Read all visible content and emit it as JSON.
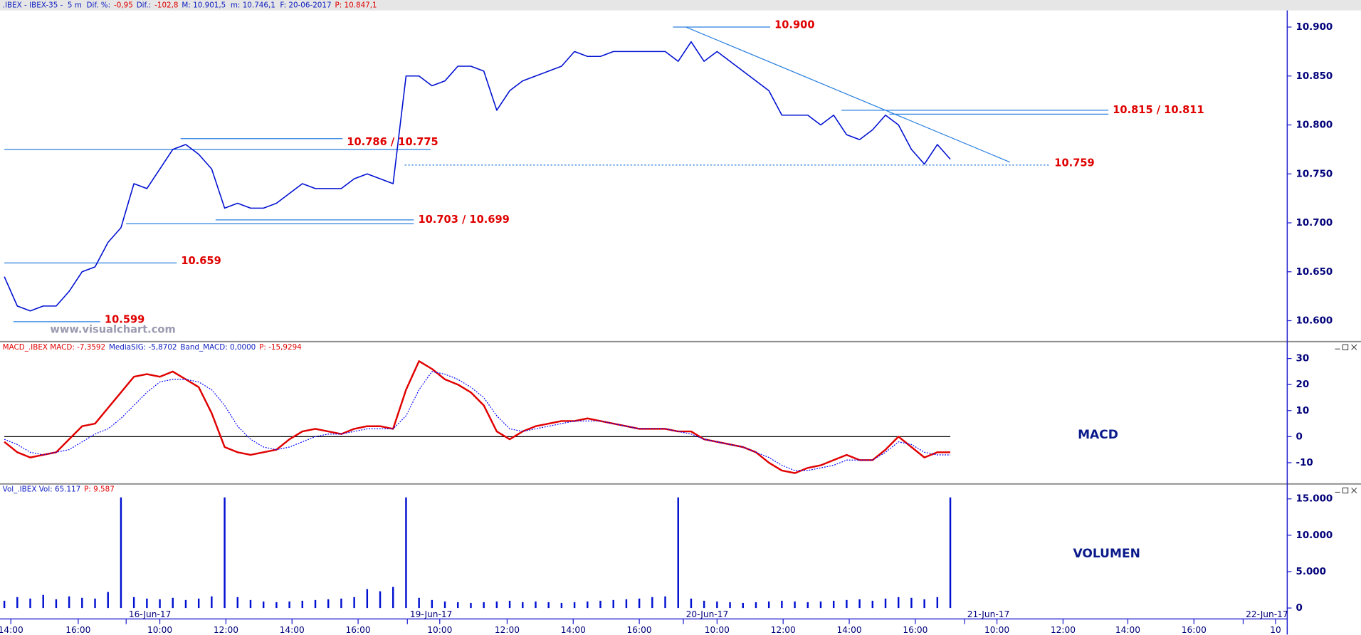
{
  "chart_data": [
    {
      "type": "line",
      "header": [
        {
          "text": ".IBEX - IBEX-35 -  5 m  Dif. %:",
          "color": "#1020c0"
        },
        {
          "text": "-0,95",
          "color": "#e00000"
        },
        {
          "text": "Dif.:",
          "color": "#1020c0"
        },
        {
          "text": "-102,8",
          "color": "#e00000"
        },
        {
          "text": "M: 10.901,5  m: 10.746,1  F: 20-06-2017",
          "color": "#1020c0"
        },
        {
          "text": "P: 10.847,1",
          "color": "#e00000"
        }
      ],
      "watermark": "www.visualchart.com",
      "color": "#0010d0",
      "x": [
        0,
        1,
        2,
        3,
        4,
        5,
        6,
        7,
        8,
        9,
        10,
        11,
        12,
        13,
        14,
        15,
        16,
        17,
        18,
        19,
        20,
        21,
        22,
        23,
        24,
        25,
        26,
        27,
        28,
        29,
        30,
        31,
        32,
        33,
        34,
        35,
        36,
        37,
        38,
        39,
        40,
        41,
        42,
        43,
        44,
        45,
        46,
        47,
        48,
        49,
        50,
        51,
        52,
        53,
        54,
        55,
        56,
        57,
        58,
        59,
        60,
        61,
        62,
        63,
        64,
        65,
        66,
        67,
        68,
        69,
        70,
        71,
        72,
        73
      ],
      "values": [
        10.645,
        10.615,
        10.61,
        10.615,
        10.615,
        10.63,
        10.65,
        10.655,
        10.68,
        10.695,
        10.74,
        10.735,
        10.755,
        10.775,
        10.78,
        10.77,
        10.755,
        10.715,
        10.72,
        10.715,
        10.715,
        10.72,
        10.73,
        10.74,
        10.735,
        10.735,
        10.735,
        10.745,
        10.75,
        10.745,
        10.74,
        10.85,
        10.85,
        10.84,
        10.845,
        10.86,
        10.86,
        10.855,
        10.815,
        10.835,
        10.845,
        10.85,
        10.855,
        10.86,
        10.875,
        10.87,
        10.87,
        10.875,
        10.875,
        10.875,
        10.875,
        10.875,
        10.865,
        10.885,
        10.865,
        10.875,
        10.865,
        10.855,
        10.845,
        10.835,
        10.81,
        10.81,
        10.81,
        10.8,
        10.81,
        10.79,
        10.785,
        10.795,
        10.81,
        10.8,
        10.775,
        10.76,
        10.78,
        10.765
      ],
      "xlim": [
        0,
        99
      ],
      "ylim": [
        10.58,
        10.917
      ],
      "yticks": [
        {
          "value": 10.6,
          "label": "10.600"
        },
        {
          "value": 10.65,
          "label": "10.650"
        },
        {
          "value": 10.7,
          "label": "10.700"
        },
        {
          "value": 10.75,
          "label": "10.750"
        },
        {
          "value": 10.8,
          "label": "10.800"
        },
        {
          "value": 10.85,
          "label": "10.850"
        },
        {
          "value": 10.9,
          "label": "10.900"
        }
      ],
      "level_color": "#2a7fe0",
      "levels": [
        {
          "label": "10.599",
          "values": [
            10.599
          ],
          "ranges": [
            [
              0.7,
              7.4
            ]
          ]
        },
        {
          "label": "10.659",
          "values": [
            10.659
          ],
          "ranges": [
            [
              0,
              13.3
            ]
          ]
        },
        {
          "label": "10.703 / 10.699",
          "values": [
            10.703,
            10.699
          ],
          "ranges": [
            [
              16.3,
              31.6
            ],
            [
              9.4,
              31.6
            ]
          ]
        },
        {
          "label": "10.786 / 10.775",
          "values": [
            10.786,
            10.775
          ],
          "ranges": [
            [
              13.6,
              26.1
            ],
            [
              0,
              32.9
            ]
          ]
        },
        {
          "label": "10.900",
          "values": [
            10.9
          ],
          "ranges": [
            [
              51.6,
              59.1
            ]
          ]
        },
        {
          "label": "10.815 / 10.811",
          "values": [
            10.815,
            10.811
          ],
          "ranges": [
            [
              64.6,
              85.2
            ],
            [
              68.3,
              85.2
            ]
          ]
        },
        {
          "label": "10.759",
          "values": [
            10.759
          ],
          "ranges": [
            [
              30.9,
              80.7
            ]
          ],
          "style": "dotted"
        }
      ],
      "trendline": {
        "x": [
          52.6,
          77.6
        ],
        "y": [
          10.9,
          10.762
        ]
      }
    },
    {
      "type": "line",
      "header": [
        {
          "text": "MACD_.IBEX MACD: -7,3592",
          "color": "#e00000"
        },
        {
          "text": "MediaSIG: -5,8702",
          "color": "#1020c0"
        },
        {
          "text": "Band_MACD: 0,0000",
          "color": "#1020c0"
        },
        {
          "text": "P: -15,9294",
          "color": "#e00000"
        }
      ],
      "label": "MACD",
      "x": [
        0,
        1,
        2,
        3,
        4,
        5,
        6,
        7,
        8,
        9,
        10,
        11,
        12,
        13,
        14,
        15,
        16,
        17,
        18,
        19,
        20,
        21,
        22,
        23,
        24,
        25,
        26,
        27,
        28,
        29,
        30,
        31,
        32,
        33,
        34,
        35,
        36,
        37,
        38,
        39,
        40,
        41,
        42,
        43,
        44,
        45,
        46,
        47,
        48,
        49,
        50,
        51,
        52,
        53,
        54,
        55,
        56,
        57,
        58,
        59,
        60,
        61,
        62,
        63,
        64,
        65,
        66,
        67,
        68,
        69,
        70,
        71,
        72,
        73
      ],
      "series": [
        {
          "color": "#e00000",
          "values": [
            -2,
            -6,
            -8,
            -7,
            -6,
            -1,
            4,
            5,
            11,
            17,
            23,
            24,
            23,
            25,
            22,
            19,
            9,
            -4,
            -6,
            -7,
            -6,
            -5,
            -1,
            2,
            3,
            2,
            1,
            3,
            4,
            4,
            3,
            18,
            29,
            26,
            22,
            20,
            17,
            12,
            2,
            -1,
            2,
            4,
            5,
            6,
            6,
            7,
            6,
            5,
            4,
            3,
            3,
            3,
            2,
            2,
            -1,
            -2,
            -3,
            -4,
            -6,
            -10,
            -13,
            -14,
            -12,
            -11,
            -9,
            -7,
            -9,
            -9,
            -5,
            0,
            -4,
            -8,
            -6,
            -6
          ]
        },
        {
          "color": "#0000ff",
          "style": "dotted",
          "values": [
            -1,
            -3,
            -6,
            -7,
            -6,
            -5,
            -2,
            1,
            3,
            7,
            12,
            17,
            21,
            22,
            22,
            21,
            18,
            12,
            4,
            -1,
            -4,
            -5,
            -4,
            -2,
            0,
            1,
            1,
            2,
            3,
            3,
            3,
            8,
            18,
            25,
            24,
            22,
            19,
            15,
            8,
            3,
            2,
            3,
            4,
            5,
            6,
            6,
            6,
            5,
            4,
            3,
            3,
            3,
            2,
            1,
            -1,
            -2,
            -3,
            -4,
            -6,
            -8,
            -11,
            -13,
            -13,
            -12,
            -11,
            -9,
            -9,
            -9,
            -6,
            -2,
            -3,
            -6,
            -7,
            -7
          ]
        }
      ],
      "band": 0,
      "xlim": [
        0,
        99
      ],
      "ylim": [
        -18,
        36
      ],
      "yticks": [
        -10,
        0,
        10,
        20,
        30
      ]
    },
    {
      "type": "bar",
      "header": [
        {
          "text": "Vol_.IBEX Vol: 65.117",
          "color": "#1020c0"
        },
        {
          "text": "P: 9.587",
          "color": "#e00000"
        }
      ],
      "label": "VOLUMEN",
      "color": "#0010d0",
      "x": [
        0,
        1,
        2,
        3,
        4,
        5,
        6,
        7,
        8,
        9,
        10,
        11,
        12,
        13,
        14,
        15,
        16,
        17,
        18,
        19,
        20,
        21,
        22,
        23,
        24,
        25,
        26,
        27,
        28,
        29,
        30,
        31,
        32,
        33,
        34,
        35,
        36,
        37,
        38,
        39,
        40,
        41,
        42,
        43,
        44,
        45,
        46,
        47,
        48,
        49,
        50,
        51,
        52,
        53,
        54,
        55,
        56,
        57,
        58,
        59,
        60,
        61,
        62,
        63,
        64,
        65,
        66,
        67,
        68,
        69,
        70,
        71,
        72,
        73
      ],
      "values": [
        1000,
        1500,
        1300,
        1800,
        1200,
        1600,
        1400,
        1300,
        2200,
        15200,
        1500,
        1300,
        1200,
        1400,
        1100,
        1300,
        1600,
        15200,
        1500,
        1100,
        900,
        800,
        900,
        1000,
        1100,
        1200,
        1300,
        1500,
        2600,
        2300,
        2900,
        15200,
        1400,
        1100,
        900,
        800,
        700,
        800,
        900,
        1000,
        800,
        900,
        800,
        700,
        800,
        900,
        1000,
        1100,
        1200,
        1300,
        1500,
        1600,
        15200,
        1300,
        1000,
        900,
        800,
        700,
        800,
        900,
        1000,
        900,
        800,
        900,
        1000,
        1100,
        1200,
        1000,
        1300,
        1500,
        1400,
        1200,
        1500,
        15200
      ],
      "xlim": [
        0,
        99
      ],
      "ylim": [
        -1500,
        16750
      ],
      "yticks": [
        0,
        {
          "value": 5000,
          "label": "5.000"
        },
        {
          "value": 10000,
          "label": "10.000"
        },
        {
          "value": 15000,
          "label": "15.000"
        }
      ],
      "xticks": [
        {
          "value": 0.5,
          "label": "14:00"
        },
        {
          "value": 5.7,
          "label": "16:00"
        },
        {
          "value": 9.4,
          "label": "16-Jun-17"
        },
        {
          "value": 12,
          "label": "10:00"
        },
        {
          "value": 17.1,
          "label": "12:00"
        },
        {
          "value": 22.2,
          "label": "14:00"
        },
        {
          "value": 27.3,
          "label": "16:00"
        },
        {
          "value": 31.1,
          "label": "19-Jun-17"
        },
        {
          "value": 33.6,
          "label": "10:00"
        },
        {
          "value": 38.8,
          "label": "12:00"
        },
        {
          "value": 43.9,
          "label": "14:00"
        },
        {
          "value": 49,
          "label": "16:00"
        },
        {
          "value": 52.4,
          "label": "20-Jun-17"
        },
        {
          "value": 55,
          "label": "10:00"
        },
        {
          "value": 60.1,
          "label": "12:00"
        },
        {
          "value": 65.2,
          "label": "14:00"
        },
        {
          "value": 70.3,
          "label": "16:00"
        },
        {
          "value": 74.1,
          "label": "21-Jun-17"
        },
        {
          "value": 76.6,
          "label": "10:00"
        },
        {
          "value": 81.7,
          "label": "12:00"
        },
        {
          "value": 86.7,
          "label": "14:00"
        },
        {
          "value": 91.8,
          "label": "16:00"
        },
        {
          "value": 95.6,
          "label": "22-Jun-17"
        },
        {
          "value": 98.1,
          "label": "10"
        }
      ]
    }
  ]
}
